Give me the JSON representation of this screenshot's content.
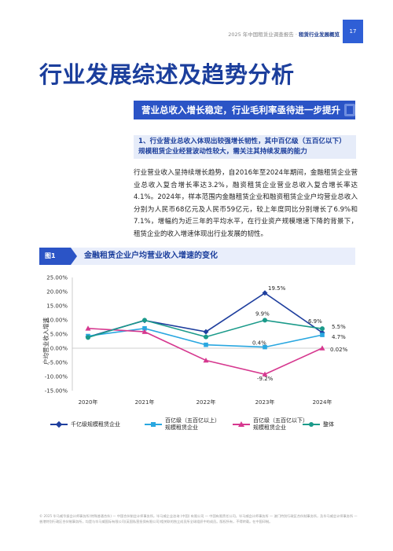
{
  "header": {
    "report": "2025 年中国租赁业调查报告 · ",
    "section": "租赁行业发展概览",
    "page_number": "17"
  },
  "page_title": "行业发展综述及趋势分析",
  "banner": "营业总收入增长稳定，行业毛利率亟待进一步提升",
  "subhead": "1、行业营业总收入体现出较强增长韧性，其中百亿级（五百亿以下）规模租赁企业经营波动性较大，需关注其持续发展的能力",
  "body_text": "行业营业收入呈持续增长趋势，自2016年至2024年期间，金融租赁企业营业总收入复合增长率达3.2%，融资租赁企业营业总收入复合增长率达4.1%。2024年，样本范围内金融租赁企业和融资租赁企业户均营业总收入分别为人民币68亿元及人民币59亿元，较上年度同比分别增长了6.9%和7.1%，增幅约为近三年的平均水平，在行业资产规模增速下降的背景下，租赁企业的收入增速体现出行业发展的韧性。",
  "figure": {
    "label": "图1",
    "title": "金融租赁企业户均营业收入增速的变化"
  },
  "chart_data": {
    "type": "line",
    "categories": [
      "2020年",
      "2021年",
      "2022年",
      "2023年",
      "2024年"
    ],
    "ylabel": "户均营业收入增速",
    "ylim": [
      -15,
      25
    ],
    "yticks": [
      "25.00%",
      "20.00%",
      "15.00%",
      "10.00%",
      "5.00%",
      "0.00%",
      "-5.00%",
      "-10.00%",
      "-15.00%"
    ],
    "grid": false,
    "legend_position": "bottom",
    "series": [
      {
        "name": "千亿级规模租赁企业",
        "color": "#1f3f9e",
        "marker": "diamond",
        "values": [
          4.0,
          9.8,
          5.8,
          19.5,
          5.5
        ]
      },
      {
        "name": "百亿级（五百亿以上）规模租赁企业",
        "color": "#29a7e0",
        "marker": "square",
        "values": [
          4.3,
          7.0,
          1.2,
          0.4,
          4.7
        ]
      },
      {
        "name": "百亿级（五百亿以下）规模租赁企业",
        "color": "#d6388f",
        "marker": "triangle",
        "values": [
          7.0,
          5.8,
          -4.3,
          -9.2,
          0.02
        ]
      },
      {
        "name": "整体",
        "color": "#1a9a8a",
        "marker": "circle",
        "values": [
          3.8,
          9.9,
          4.0,
          9.9,
          6.9
        ]
      }
    ],
    "annotations": [
      {
        "text": "19.5%",
        "series": 0,
        "index": 3
      },
      {
        "text": "9.9%",
        "series": 3,
        "index": 3
      },
      {
        "text": "0.4%",
        "series": 1,
        "index": 3
      },
      {
        "text": "-9.2%",
        "series": 2,
        "index": 3
      },
      {
        "text": "6.9%",
        "series": 3,
        "index": 4
      },
      {
        "text": "5.5%",
        "series": 0,
        "index": 4
      },
      {
        "text": "4.7%",
        "series": 1,
        "index": 4
      },
      {
        "text": "0.02%",
        "series": 2,
        "index": 4
      }
    ]
  },
  "legend": {
    "item1": "千亿级规模租赁企业",
    "item2_line1": "百亿级（五百亿以上）",
    "item2_line2": "规模租赁企业",
    "item3_line1": "百亿级（五百亿以下）",
    "item3_line2": "规模租赁企业",
    "item4": "整体"
  },
  "footer": "© 2025 毕马威华振会计师事务所(特殊普通合伙) — 中国合伙制会计师事务所，毕马威企业咨询 (中国) 有限公司 — 中国有限责任公司，毕马威会计师事务所 — 澳门特别行政区合伙制事务所，及毕马威会计师事务所 — 香港特别行政区合伙制事务所，均是与毕马威国际有限公司(英国私营担保有限公司)相关联的独立成员所全球组织中的成员。版权所有，不得转载。在中国印制。"
}
